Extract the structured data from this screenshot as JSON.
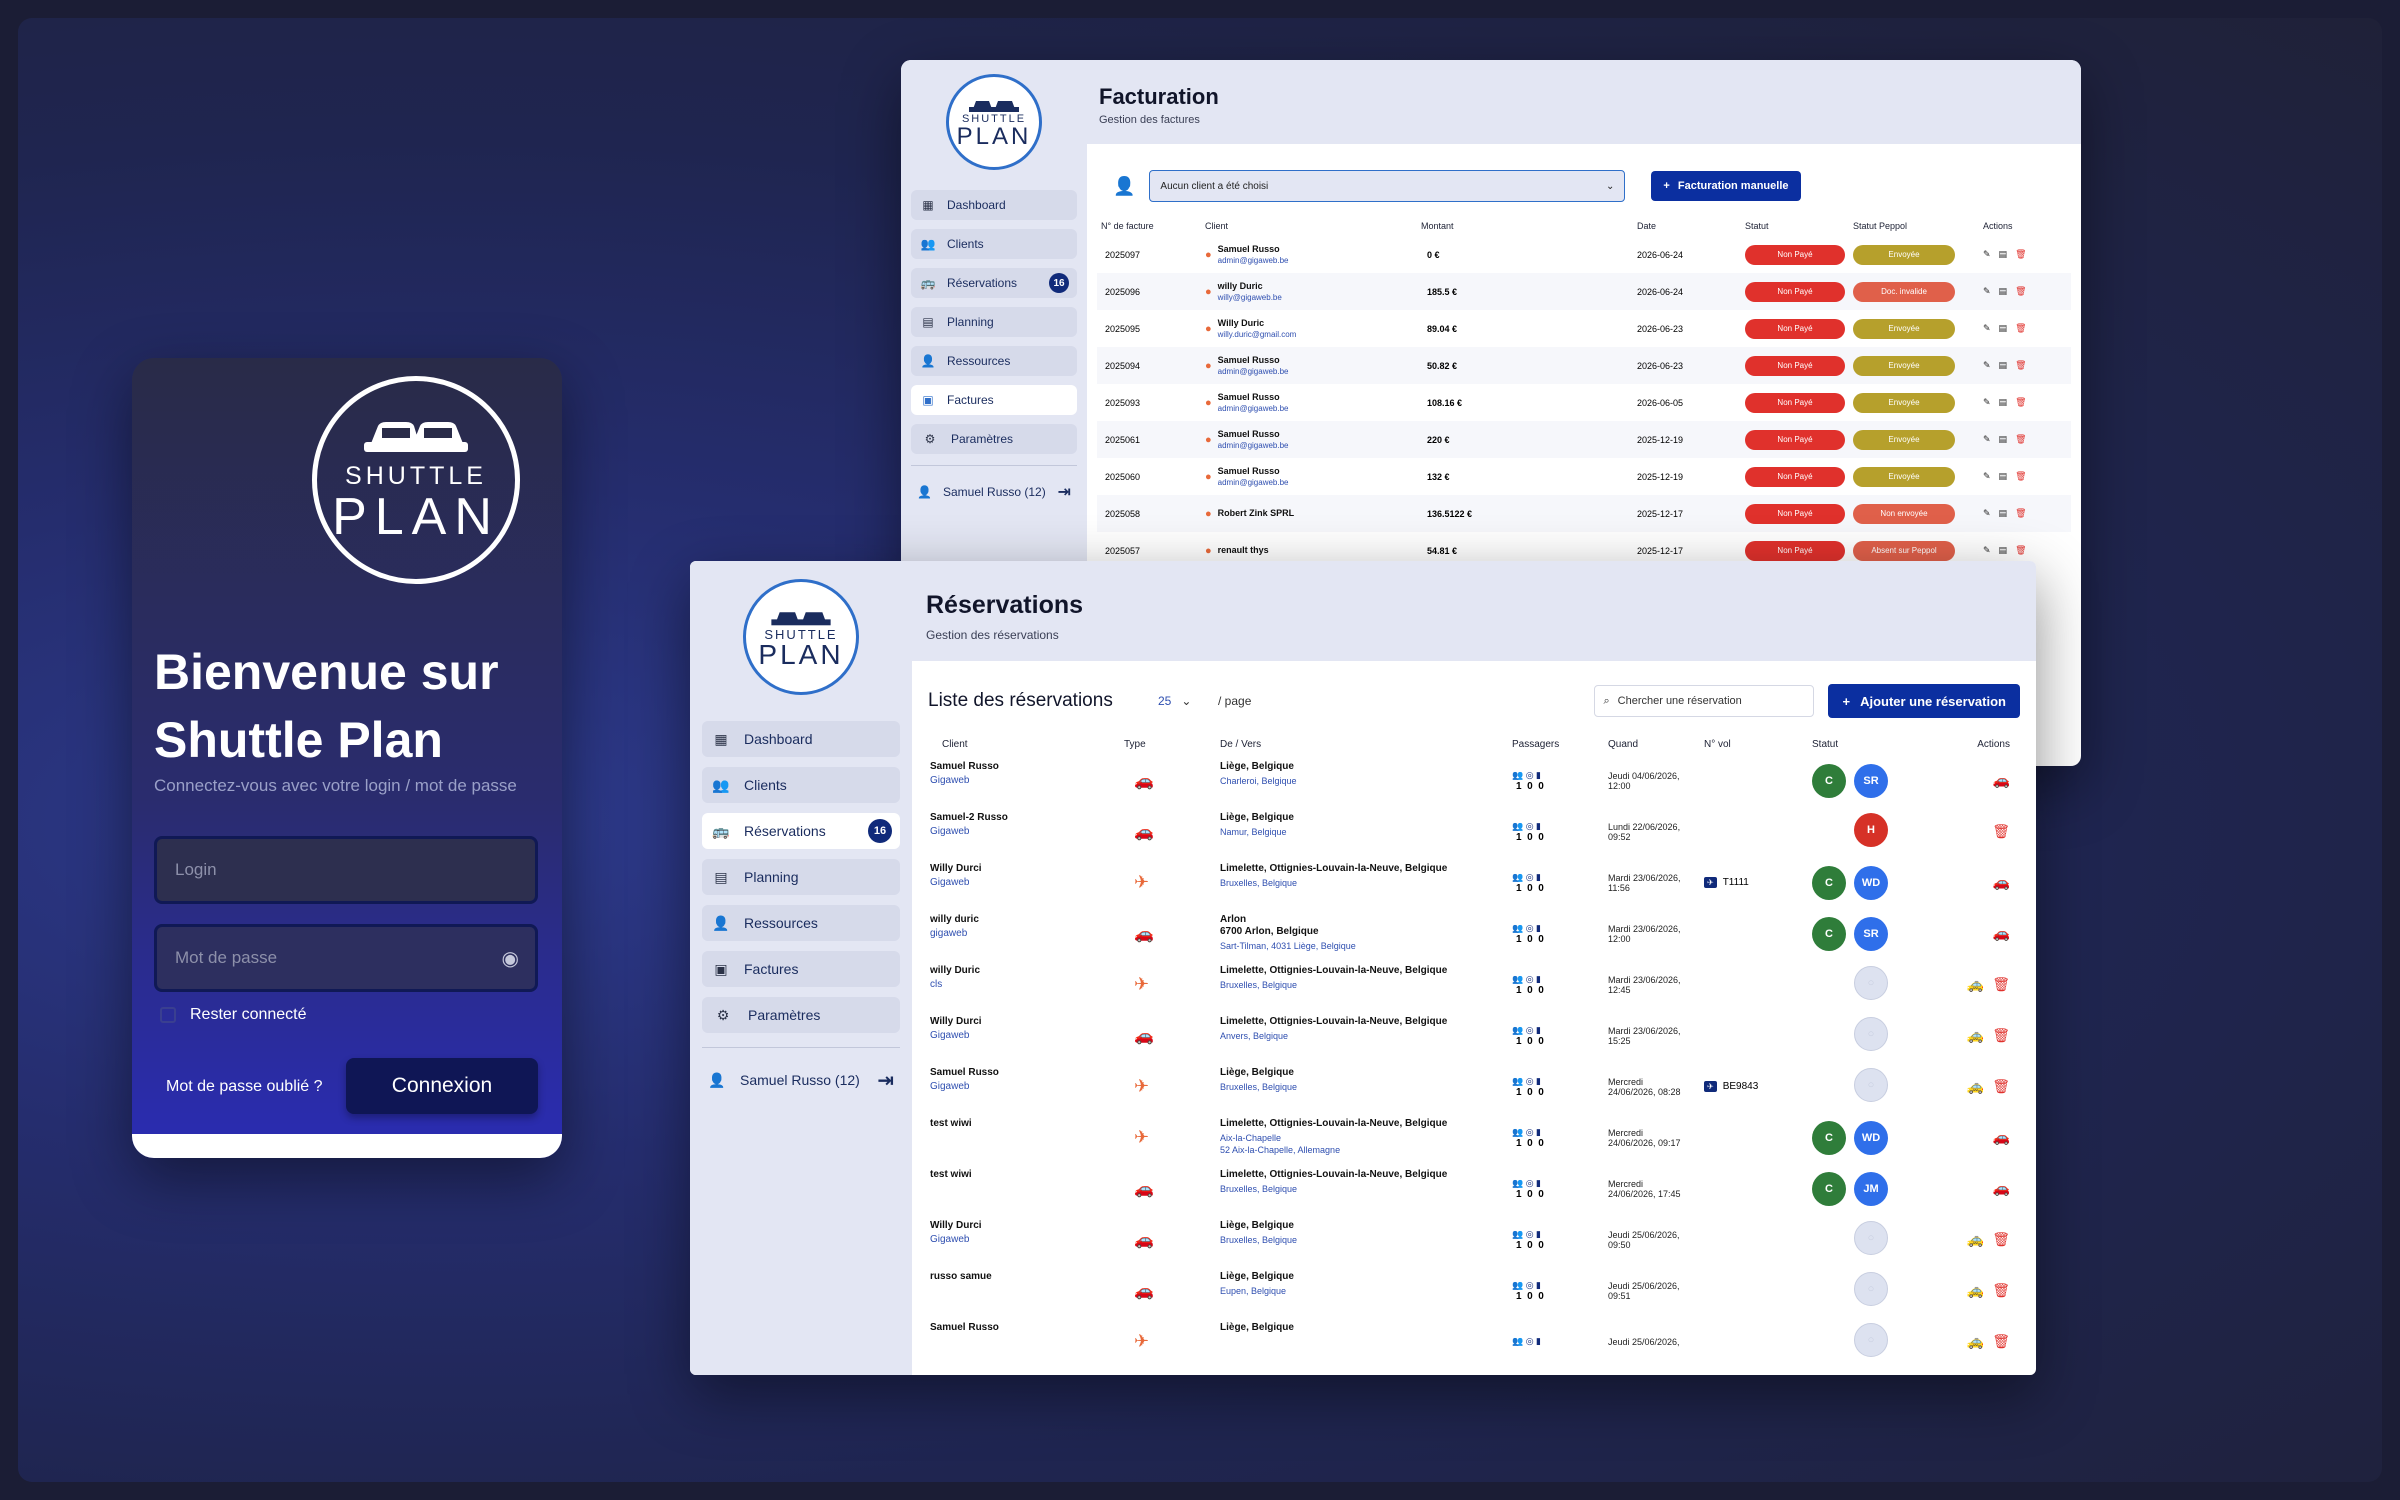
{
  "logo": {
    "line1": "SHUTTLE",
    "line2": "PLAN"
  },
  "login": {
    "title_line1": "Bienvenue sur",
    "title_line2": "Shuttle Plan",
    "subtitle": "Connectez-vous avec votre login / mot de passe",
    "login_placeholder": "Login",
    "password_placeholder": "Mot de passe",
    "remember_label": "Rester connecté",
    "forgot_label": "Mot de passe oublié ?",
    "connect_label": "Connexion"
  },
  "nav": {
    "items": [
      {
        "label": "Dashboard",
        "icon": "dashboard-icon"
      },
      {
        "label": "Clients",
        "icon": "clients-icon"
      },
      {
        "label": "Réservations",
        "icon": "reservations-icon",
        "badge": "16"
      },
      {
        "label": "Planning",
        "icon": "calendar-icon"
      },
      {
        "label": "Ressources",
        "icon": "resources-icon"
      },
      {
        "label": "Factures",
        "icon": "invoice-icon"
      },
      {
        "label": "Paramètres",
        "icon": "settings-icon"
      }
    ],
    "user": "Samuel Russo (12)"
  },
  "billing": {
    "title": "Facturation",
    "subtitle": "Gestion des factures",
    "client_select": "Aucun client a été choisi",
    "manual_button": "Facturation manuelle",
    "columns": [
      "N° de facture",
      "Client",
      "Montant",
      "Date",
      "Statut",
      "Statut Peppol",
      "Actions"
    ],
    "rows": [
      {
        "num": "2025097",
        "name": "Samuel  Russo",
        "email": "admin@gigaweb.be",
        "amount": "0 €",
        "date": "2026-06-24",
        "status": "Non Payé",
        "peppol": "Envoyée",
        "pc": "olive"
      },
      {
        "num": "2025096",
        "name": "willy  Duric",
        "email": "willy@gigaweb.be",
        "amount": "185.5 €",
        "date": "2026-06-24",
        "status": "Non Payé",
        "peppol": "Doc. invalide",
        "pc": "salmon"
      },
      {
        "num": "2025095",
        "name": "Willy  Duric",
        "email": "willy.duric@gmail.com",
        "amount": "89.04 €",
        "date": "2026-06-23",
        "status": "Non Payé",
        "peppol": "Envoyée",
        "pc": "olive"
      },
      {
        "num": "2025094",
        "name": "Samuel  Russo",
        "email": "admin@gigaweb.be",
        "amount": "50.82 €",
        "date": "2026-06-23",
        "status": "Non Payé",
        "peppol": "Envoyée",
        "pc": "olive"
      },
      {
        "num": "2025093",
        "name": "Samuel  Russo",
        "email": "admin@gigaweb.be",
        "amount": "108.16 €",
        "date": "2026-06-05",
        "status": "Non Payé",
        "peppol": "Envoyée",
        "pc": "olive"
      },
      {
        "num": "2025061",
        "name": "Samuel  Russo",
        "email": "admin@gigaweb.be",
        "amount": "220 €",
        "date": "2025-12-19",
        "status": "Non Payé",
        "peppol": "Envoyée",
        "pc": "olive"
      },
      {
        "num": "2025060",
        "name": "Samuel  Russo",
        "email": "admin@gigaweb.be",
        "amount": "132 €",
        "date": "2025-12-19",
        "status": "Non Payé",
        "peppol": "Envoyée",
        "pc": "olive"
      },
      {
        "num": "2025058",
        "name": "Robert Zink  SPRL",
        "email": "",
        "amount": "136.5122 €",
        "date": "2025-12-17",
        "status": "Non Payé",
        "peppol": "Non envoyée",
        "pc": "salmon"
      },
      {
        "num": "2025057",
        "name": "renault  thys",
        "email": "",
        "amount": "54.81 €",
        "date": "2025-12-17",
        "status": "Non Payé",
        "peppol": "Absent sur Peppol",
        "pc": "salmon"
      }
    ]
  },
  "reservations": {
    "title": "Réservations",
    "subtitle": "Gestion des réservations",
    "list_title": "Liste des réservations",
    "per_page_value": "25",
    "per_page_label": "/ page",
    "search_placeholder": "Chercher une réservation",
    "add_button": "Ajouter une réservation",
    "columns": [
      "Client",
      "Type",
      "De / Vers",
      "Passagers",
      "Quand",
      "N° vol",
      "Statut",
      "Actions"
    ],
    "rows": [
      {
        "name": "Samuel Russo",
        "company": "Gigaweb",
        "type": "car",
        "from": "Liège, Belgique",
        "to": "Charleroi, Belgique",
        "pax": "1  0  0",
        "when1": "Jeudi 04/06/2026,",
        "when2": "12:00",
        "flight": "",
        "s1": "C",
        "s1c": "g",
        "s2": "SR",
        "s2c": "b",
        "actions": "car"
      },
      {
        "name": "Samuel-2 Russo",
        "company": "Gigaweb",
        "type": "car",
        "from": "Liège, Belgique",
        "to": "Namur, Belgique",
        "pax": "1  0  0",
        "when1": "Lundi 22/06/2026,",
        "when2": "09:52",
        "flight": "",
        "s1": "",
        "s1c": "",
        "s2": "H",
        "s2c": "r",
        "actions": "trash"
      },
      {
        "name": "Willy Durci",
        "company": "Gigaweb",
        "type": "plane",
        "from": "Limelette, Ottignies-Louvain-la-Neuve, Belgique",
        "to": "Bruxelles, Belgique",
        "pax": "1  0  0",
        "when1": "Mardi 23/06/2026,",
        "when2": "11:56",
        "flight": "T1111",
        "s1": "C",
        "s1c": "g",
        "s2": "WD",
        "s2c": "b",
        "actions": "car"
      },
      {
        "name": "willy duric",
        "company": "gigaweb",
        "type": "car",
        "from": "Arlon\n6700 Arlon, Belgique",
        "to": "Sart-Tilman, 4031 Liège, Belgique",
        "pax": "1  0  0",
        "when1": "Mardi 23/06/2026,",
        "when2": "12:00",
        "flight": "",
        "s1": "C",
        "s1c": "g",
        "s2": "SR",
        "s2c": "b",
        "actions": "car"
      },
      {
        "name": "willy Duric",
        "company": "cls",
        "type": "plane",
        "from": "Limelette, Ottignies-Louvain-la-Neuve, Belgique",
        "to": "Bruxelles, Belgique",
        "pax": "1  0  0",
        "when1": "Mardi 23/06/2026,",
        "when2": "12:45",
        "flight": "",
        "s1": "",
        "s1c": "",
        "s2": "○",
        "s2c": "e",
        "actions": "both"
      },
      {
        "name": "Willy Durci",
        "company": "Gigaweb",
        "type": "car",
        "from": "Limelette, Ottignies-Louvain-la-Neuve, Belgique",
        "to": "Anvers, Belgique",
        "pax": "1  0  0",
        "when1": "Mardi 23/06/2026,",
        "when2": "15:25",
        "flight": "",
        "s1": "",
        "s1c": "",
        "s2": "○",
        "s2c": "e",
        "actions": "both"
      },
      {
        "name": "Samuel Russo",
        "company": "Gigaweb",
        "type": "plane",
        "from": "Liège, Belgique",
        "to": "Bruxelles, Belgique",
        "pax": "1  0  0",
        "when1": "Mercredi",
        "when2": "24/06/2026, 08:28",
        "flight": "BE9843",
        "s1": "",
        "s1c": "",
        "s2": "○",
        "s2c": "e",
        "actions": "both"
      },
      {
        "name": "test wiwi",
        "company": "",
        "type": "plane",
        "from": "Limelette, Ottignies-Louvain-la-Neuve, Belgique",
        "to": "Aix-la-Chapelle\n52 Aix-la-Chapelle, Allemagne",
        "pax": "1  0  0",
        "when1": "Mercredi",
        "when2": "24/06/2026, 09:17",
        "flight": "",
        "s1": "C",
        "s1c": "g",
        "s2": "WD",
        "s2c": "b",
        "actions": "car"
      },
      {
        "name": "test wiwi",
        "company": "",
        "type": "car",
        "from": "Limelette, Ottignies-Louvain-la-Neuve, Belgique",
        "to": "Bruxelles, Belgique",
        "pax": "1  0  0",
        "when1": "Mercredi",
        "when2": "24/06/2026, 17:45",
        "flight": "",
        "s1": "C",
        "s1c": "g",
        "s2": "JM",
        "s2c": "b",
        "actions": "car"
      },
      {
        "name": "Willy Durci",
        "company": "Gigaweb",
        "type": "car",
        "from": "Liège, Belgique",
        "to": "Bruxelles, Belgique",
        "pax": "1  0  0",
        "when1": "Jeudi 25/06/2026,",
        "when2": "09:50",
        "flight": "",
        "s1": "",
        "s1c": "",
        "s2": "○",
        "s2c": "e",
        "actions": "both"
      },
      {
        "name": "russo samue",
        "company": "",
        "type": "car",
        "from": "Liège, Belgique",
        "to": "Eupen, Belgique",
        "pax": "1  0  0",
        "when1": "Jeudi 25/06/2026,",
        "when2": "09:51",
        "flight": "",
        "s1": "",
        "s1c": "",
        "s2": "○",
        "s2c": "e",
        "actions": "both"
      },
      {
        "name": "Samuel Russo",
        "company": "",
        "type": "plane",
        "from": "Liège, Belgique",
        "to": "",
        "pax": "",
        "when1": "Jeudi 25/06/2026,",
        "when2": "",
        "flight": "",
        "s1": "",
        "s1c": "",
        "s2": "○",
        "s2c": "e",
        "actions": "both"
      }
    ]
  },
  "colors": {
    "primary": "#0b2fa0",
    "navy": "#101a55",
    "orange": "#e8693a",
    "red": "#e0312c",
    "olive": "#b6a02c"
  }
}
